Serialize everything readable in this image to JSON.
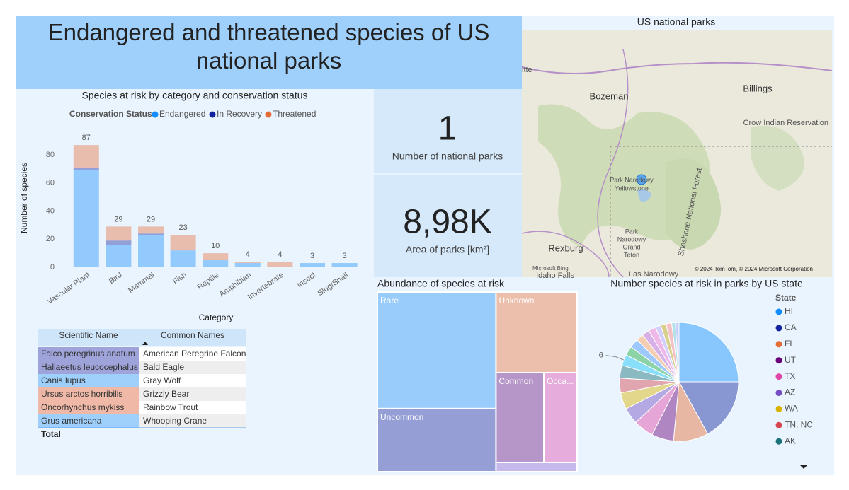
{
  "title": "Endangered and threatened species of US national parks",
  "cards": [
    {
      "value": "1",
      "label": "Number of national parks"
    },
    {
      "value": "8,98K",
      "label": "Area of parks [km²]"
    }
  ],
  "map": {
    "title": "US national parks",
    "labels": [
      "itte",
      "Bozeman",
      "Billings",
      "Crow Indian Reservation",
      "Park Narodowy",
      "Yellowstone",
      "Park",
      "Narodowy",
      "Grand",
      "Teton",
      "Rexburg",
      "Idaho Falls",
      "Las Narodowy",
      "Shoshone National Forest"
    ],
    "provider": "Microsoft Bing",
    "attribution": "© 2024 TomTom, © 2024 Microsoft Corporation"
  },
  "table": {
    "headers": [
      "Scientific Name",
      "Common Names"
    ],
    "rows": [
      [
        "Falco peregrinus anatum",
        "American Peregrine Falcon"
      ],
      [
        "Haliaeetus leucocephalus",
        "Bald Eagle"
      ],
      [
        "Canis lupus",
        "Gray Wolf"
      ],
      [
        "Ursus arctos horribilis",
        "Grizzly Bear"
      ],
      [
        "Oncorhynchus mykiss",
        "Rainbow Trout"
      ],
      [
        "Grus americana",
        "Whooping Crane"
      ]
    ],
    "total": "Total"
  },
  "chart_data": [
    {
      "type": "bar",
      "stacked": true,
      "title": "Species at risk by category and conservation status",
      "legend_title": "Conservation Status",
      "x_label": "Category",
      "y_label": "Number of species",
      "categories": [
        "Vascular Plant",
        "Bird",
        "Mammal",
        "Fish",
        "Reptile",
        "Amphibian",
        "Invertebrate",
        "Insect",
        "Slug/Snail"
      ],
      "series": [
        {
          "name": "Endangered",
          "color": "#118dff",
          "values": [
            69,
            16,
            23,
            12,
            5,
            3,
            0,
            3,
            3
          ]
        },
        {
          "name": "In Recovery",
          "color": "#12239e",
          "values": [
            2,
            3,
            1,
            0,
            0,
            0,
            0,
            0,
            0
          ]
        },
        {
          "name": "Threatened",
          "color": "#e66c37",
          "values": [
            16,
            10,
            5,
            11,
            5,
            1,
            4,
            0,
            0
          ]
        }
      ],
      "totals": [
        87,
        29,
        29,
        23,
        10,
        4,
        4,
        3,
        3
      ],
      "ylim": [
        0,
        95
      ],
      "yticks": [
        0,
        20,
        40,
        60,
        80
      ],
      "grid": false
    },
    {
      "type": "treemap",
      "title": "Abundance of species at risk",
      "categories": [
        "Rare",
        "Uncommon",
        "Unknown",
        "Common",
        "Occa...",
        null
      ],
      "values": [
        74,
        40,
        35,
        23,
        16,
        4
      ],
      "colors": [
        "#99ccfa",
        "#959fd6",
        "#ecbfad",
        "#b695c8",
        "#e6addc",
        "#c6b8ea"
      ]
    },
    {
      "type": "pie",
      "title": "Number species at risk in parks by US state",
      "legend_title": "State",
      "categories": [
        "HI",
        "CA",
        "FL",
        "UT",
        "TX",
        "AZ",
        "WA",
        "TN, NC",
        "AK",
        null,
        null,
        null,
        null,
        null,
        null,
        null,
        null,
        null,
        null,
        null
      ],
      "values": [
        50,
        34,
        19,
        12,
        11,
        9,
        9,
        8,
        7,
        6,
        5,
        5,
        4,
        4,
        4,
        3,
        3,
        3,
        2,
        2
      ],
      "value_labels": [
        null,
        null,
        null,
        null,
        null,
        null,
        null,
        null,
        null,
        "6",
        null,
        null,
        null,
        null,
        null,
        null,
        null,
        null,
        null,
        null
      ],
      "colors": [
        "#118dff",
        "#12239e",
        "#e66c37",
        "#6b007b",
        "#e044a7",
        "#744ec2",
        "#d9b300",
        "#d64550",
        "#197278",
        "#15c6f4",
        "#1aab40",
        "#4092ff",
        "#ffa058",
        "#be5dc9",
        "#f472d0",
        "#b5a1ff",
        "#c4a200",
        "#ff8080",
        "#6fcad4",
        "#a3a3ff"
      ]
    }
  ]
}
